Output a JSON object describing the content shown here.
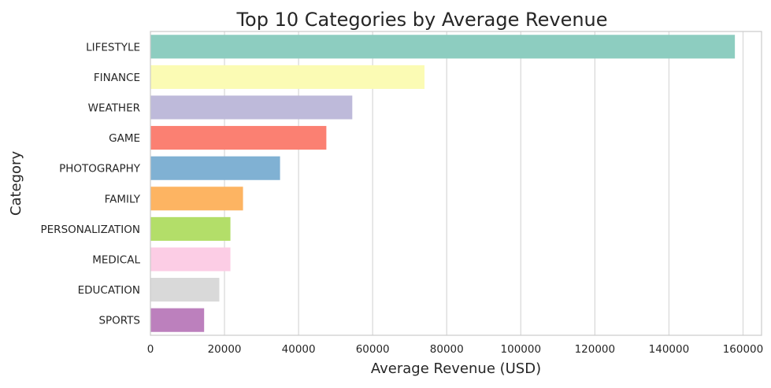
{
  "chart_data": {
    "type": "bar",
    "orientation": "horizontal",
    "title": "Top 10 Categories by Average Revenue",
    "xlabel": "Average Revenue (USD)",
    "ylabel": "Category",
    "categories": [
      "LIFESTYLE",
      "FINANCE",
      "WEATHER",
      "GAME",
      "PHOTOGRAPHY",
      "FAMILY",
      "PERSONALIZATION",
      "MEDICAL",
      "EDUCATION",
      "SPORTS"
    ],
    "values": [
      157800,
      74000,
      54500,
      47500,
      35000,
      25000,
      21600,
      21600,
      18600,
      14500
    ],
    "colors": [
      "#8dcdc0",
      "#fbfbb4",
      "#bebada",
      "#fb8072",
      "#80b1d3",
      "#fdb462",
      "#b3de69",
      "#fccde5",
      "#d9d9d9",
      "#bc80bd"
    ],
    "xlim": [
      0,
      165000
    ],
    "xticks": [
      0,
      20000,
      40000,
      60000,
      80000,
      100000,
      120000,
      140000,
      160000
    ],
    "xtick_labels": [
      "0",
      "20000",
      "40000",
      "60000",
      "80000",
      "100000",
      "120000",
      "140000",
      "160000"
    ],
    "grid": "vertical",
    "legend": "none"
  }
}
